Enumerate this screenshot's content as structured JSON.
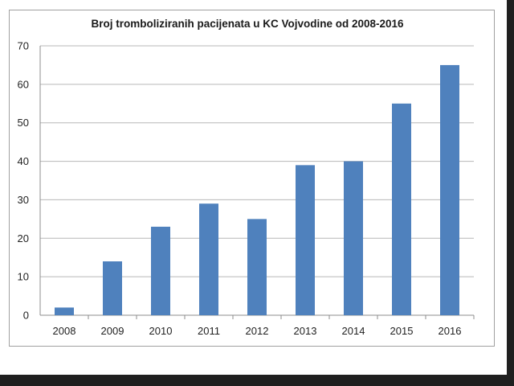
{
  "colors": {
    "bar": "#4f81bd",
    "grid": "#b7b7b7",
    "axis": "#8c8c8c",
    "frame_border": "#a0a0a0",
    "screen_edge": "#1f1f1f"
  },
  "chart_data": {
    "type": "bar",
    "title": "Broj tromboliziranih pacijenata u KC Vojvodine od 2008-2016",
    "xlabel": "",
    "ylabel": "",
    "categories": [
      "2008",
      "2009",
      "2010",
      "2011",
      "2012",
      "2013",
      "2014",
      "2015",
      "2016"
    ],
    "values": [
      2,
      14,
      23,
      29,
      25,
      39,
      40,
      55,
      65
    ],
    "ylim": [
      0,
      70
    ],
    "yticks": [
      0,
      10,
      20,
      30,
      40,
      50,
      60,
      70
    ],
    "ytick_labels": [
      "0",
      "10",
      "20",
      "30",
      "40",
      "50",
      "60",
      "70"
    ],
    "grid": true,
    "legend": "none"
  }
}
